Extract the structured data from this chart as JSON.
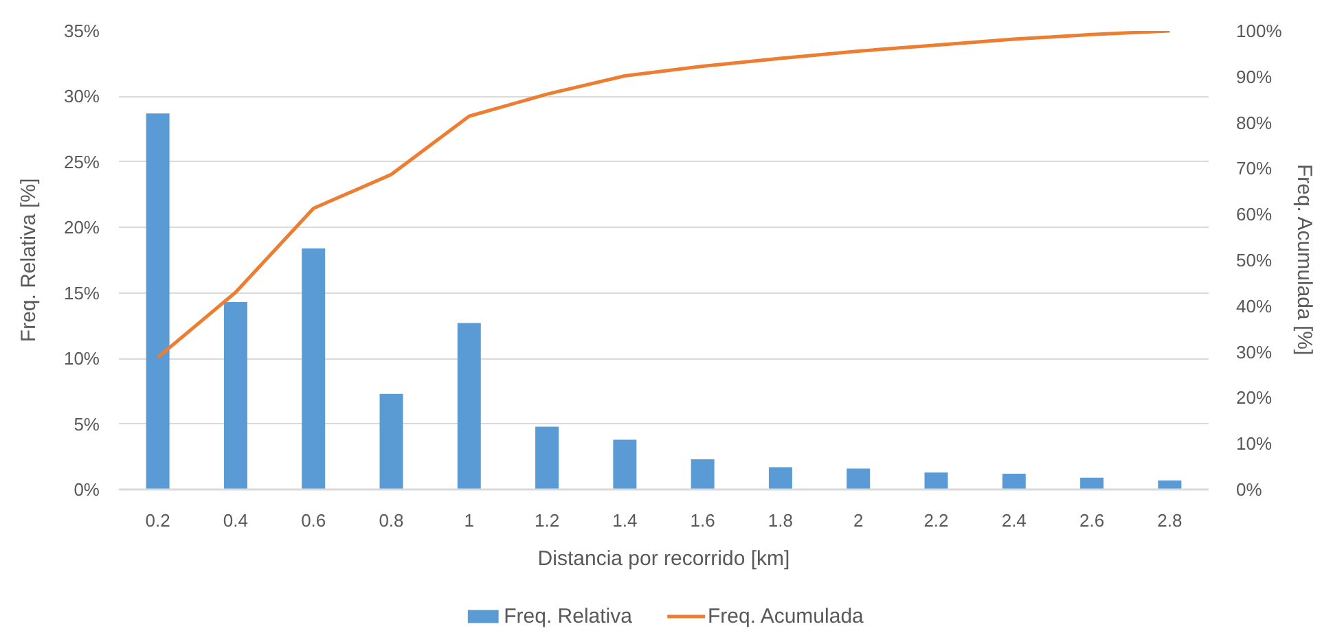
{
  "chart_data": {
    "type": "bar",
    "xlabel": "Distancia por recorrido [km]",
    "ylabel": "Freq. Relativa [%]",
    "y2label": "Freq. Acumulada [%]",
    "categories": [
      "0.2",
      "0.4",
      "0.6",
      "0.8",
      "1",
      "1.2",
      "1.4",
      "1.6",
      "1.8",
      "2",
      "2.2",
      "2.4",
      "2.6",
      "2.8"
    ],
    "series": [
      {
        "name": "Freq. Relativa",
        "color": "#5b9bd5",
        "values": [
          28.7,
          14.3,
          18.4,
          7.3,
          12.7,
          4.8,
          3.8,
          2.3,
          1.7,
          1.6,
          1.3,
          1.2,
          0.9,
          0.7
        ]
      },
      {
        "name": "Freq. Acumulada",
        "type": "line",
        "axis": "y2",
        "color": "#ed7d31",
        "values": [
          28.8,
          43,
          61.3,
          68.7,
          81.4,
          86.2,
          90.2,
          92.3,
          94,
          95.6,
          96.9,
          98.2,
          99.2,
          100
        ]
      }
    ],
    "ylim": [
      0,
      35
    ],
    "yticks": [
      {
        "value": 0,
        "label": "0%"
      },
      {
        "value": 5,
        "label": "5%"
      },
      {
        "value": 10,
        "label": "10%"
      },
      {
        "value": 15,
        "label": "15%"
      },
      {
        "value": 20,
        "label": "20%"
      },
      {
        "value": 25,
        "label": "25%"
      },
      {
        "value": 30,
        "label": "30%"
      },
      {
        "value": 35,
        "label": "35%"
      }
    ],
    "y2lim": [
      0,
      100
    ],
    "y2ticks": [
      {
        "value": 0,
        "label": "0%"
      },
      {
        "value": 10,
        "label": "10%"
      },
      {
        "value": 20,
        "label": "20%"
      },
      {
        "value": 30,
        "label": "30%"
      },
      {
        "value": 40,
        "label": "40%"
      },
      {
        "value": 50,
        "label": "50%"
      },
      {
        "value": 60,
        "label": "60%"
      },
      {
        "value": 70,
        "label": "70%"
      },
      {
        "value": 80,
        "label": "80%"
      },
      {
        "value": 90,
        "label": "90%"
      },
      {
        "value": 100,
        "label": "100%"
      }
    ],
    "grid": "y",
    "legend": "bottom"
  }
}
